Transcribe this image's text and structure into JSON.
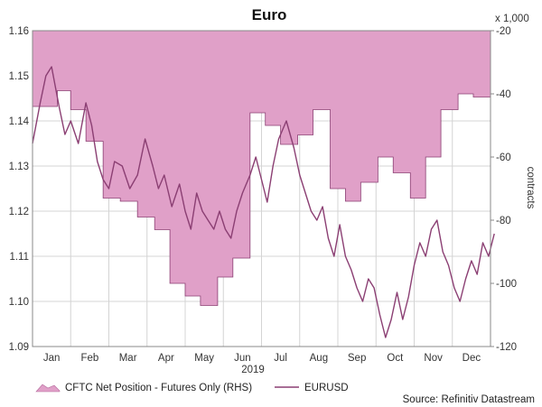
{
  "chart_data": {
    "type": "line",
    "title": "Euro",
    "year_label": "2019",
    "months": [
      "Jan",
      "Feb",
      "Mar",
      "Apr",
      "May",
      "Jun",
      "Jul",
      "Aug",
      "Sep",
      "Oct",
      "Nov",
      "Dec"
    ],
    "left_axis": {
      "range": [
        1.09,
        1.16
      ],
      "ticks": [
        "1.09",
        "1.10",
        "1.11",
        "1.12",
        "1.13",
        "1.14",
        "1.15",
        "1.16"
      ]
    },
    "right_axis": {
      "range": [
        -120,
        -20
      ],
      "ticks": [
        "-20",
        "-40",
        "-60",
        "-80",
        "-100",
        "-120"
      ],
      "multiplier": "x 1,000",
      "label": "contracts"
    },
    "series": [
      {
        "name": "CFTC Net Position - Futures Only (RHS)",
        "axis": "right",
        "kind": "area-step",
        "color": "#e0a0c8",
        "edge": "#8b3f73",
        "weeks": [
          0,
          0.65,
          1,
          1.4,
          1.85,
          2.3,
          2.75,
          3.2,
          3.6,
          4,
          4.4,
          4.85,
          5.25,
          5.7,
          6.1,
          6.5,
          6.95,
          7.35,
          7.8,
          8.2,
          8.6,
          9.05,
          9.45,
          9.9,
          10.3,
          10.7,
          11.15,
          11.55,
          12
        ],
        "values": [
          -44,
          -39,
          -45,
          -55,
          -73,
          -74,
          -79,
          -83,
          -100,
          -104,
          -107,
          -98,
          -92,
          -46,
          -50,
          -56,
          -53,
          -45,
          -70,
          -74,
          -68,
          -60,
          -65,
          -73,
          -60,
          -45,
          -40,
          -41,
          -41
        ]
      },
      {
        "name": "EURUSD",
        "axis": "left",
        "kind": "line",
        "color": "#8b3f73",
        "points": [
          [
            0.0,
            1.135
          ],
          [
            0.2,
            1.144
          ],
          [
            0.35,
            1.15
          ],
          [
            0.5,
            1.152
          ],
          [
            0.7,
            1.143
          ],
          [
            0.85,
            1.137
          ],
          [
            1.0,
            1.14
          ],
          [
            1.2,
            1.135
          ],
          [
            1.4,
            1.144
          ],
          [
            1.55,
            1.139
          ],
          [
            1.7,
            1.131
          ],
          [
            1.85,
            1.127
          ],
          [
            2.0,
            1.125
          ],
          [
            2.15,
            1.131
          ],
          [
            2.35,
            1.13
          ],
          [
            2.55,
            1.125
          ],
          [
            2.75,
            1.128
          ],
          [
            2.95,
            1.136
          ],
          [
            3.15,
            1.13
          ],
          [
            3.3,
            1.125
          ],
          [
            3.45,
            1.128
          ],
          [
            3.65,
            1.121
          ],
          [
            3.85,
            1.126
          ],
          [
            4.0,
            1.12
          ],
          [
            4.15,
            1.116
          ],
          [
            4.3,
            1.124
          ],
          [
            4.45,
            1.12
          ],
          [
            4.6,
            1.118
          ],
          [
            4.75,
            1.116
          ],
          [
            4.9,
            1.12
          ],
          [
            5.05,
            1.116
          ],
          [
            5.2,
            1.114
          ],
          [
            5.35,
            1.12
          ],
          [
            5.5,
            1.124
          ],
          [
            5.7,
            1.128
          ],
          [
            5.85,
            1.132
          ],
          [
            6.0,
            1.127
          ],
          [
            6.15,
            1.122
          ],
          [
            6.3,
            1.13
          ],
          [
            6.45,
            1.136
          ],
          [
            6.65,
            1.14
          ],
          [
            6.85,
            1.134
          ],
          [
            7.0,
            1.128
          ],
          [
            7.15,
            1.124
          ],
          [
            7.3,
            1.12
          ],
          [
            7.45,
            1.118
          ],
          [
            7.6,
            1.121
          ],
          [
            7.75,
            1.114
          ],
          [
            7.9,
            1.11
          ],
          [
            8.05,
            1.117
          ],
          [
            8.2,
            1.11
          ],
          [
            8.35,
            1.107
          ],
          [
            8.5,
            1.103
          ],
          [
            8.65,
            1.1
          ],
          [
            8.8,
            1.105
          ],
          [
            8.95,
            1.103
          ],
          [
            9.1,
            1.097
          ],
          [
            9.25,
            1.092
          ],
          [
            9.4,
            1.096
          ],
          [
            9.55,
            1.102
          ],
          [
            9.7,
            1.096
          ],
          [
            9.85,
            1.101
          ],
          [
            10.0,
            1.108
          ],
          [
            10.15,
            1.113
          ],
          [
            10.3,
            1.11
          ],
          [
            10.45,
            1.116
          ],
          [
            10.6,
            1.118
          ],
          [
            10.75,
            1.111
          ],
          [
            10.9,
            1.108
          ],
          [
            11.05,
            1.103
          ],
          [
            11.2,
            1.1
          ],
          [
            11.35,
            1.105
          ],
          [
            11.5,
            1.109
          ],
          [
            11.65,
            1.106
          ],
          [
            11.8,
            1.113
          ],
          [
            11.95,
            1.11
          ],
          [
            12.1,
            1.115
          ]
        ]
      }
    ],
    "source": "Source: Refinitiv Datastream"
  }
}
